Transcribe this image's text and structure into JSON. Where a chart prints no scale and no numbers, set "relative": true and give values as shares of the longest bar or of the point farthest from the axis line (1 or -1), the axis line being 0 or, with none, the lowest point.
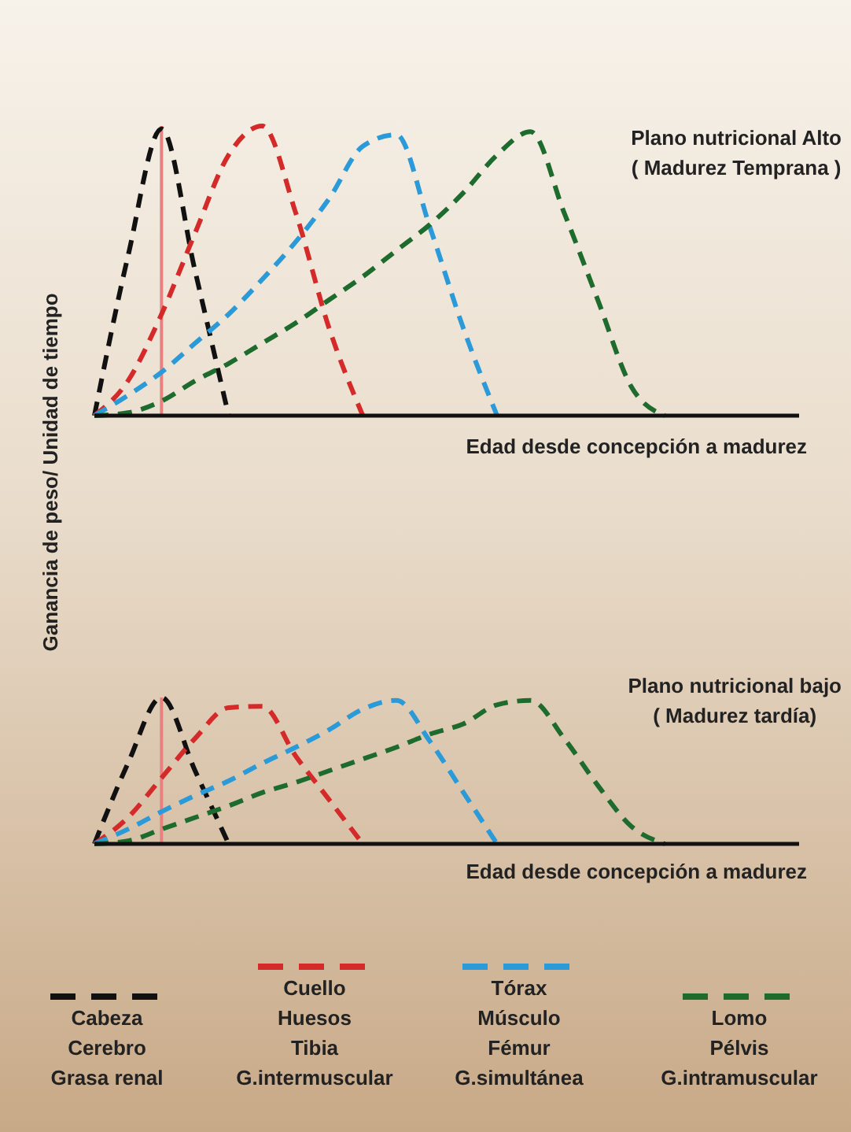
{
  "chart_data": [
    {
      "type": "line",
      "title": "Plano nutricional Alto",
      "subtitle": "( Madurez Temprana )",
      "xlabel": "Edad desde concepción a madurez",
      "ylabel": "Ganancia de peso/ Unidad de tiempo",
      "relative": true,
      "line_style": "dashed",
      "marker": "none",
      "grid": false,
      "categories": [
        null,
        null,
        null,
        null,
        null,
        null,
        null,
        null,
        null,
        null,
        null,
        null,
        null,
        null,
        null,
        null,
        null,
        null,
        null,
        null,
        null,
        null
      ],
      "series": [
        {
          "color": "#111111",
          "values": [
            0,
            0.55,
            0.99,
            0.5,
            0,
            null,
            null,
            null,
            null,
            null,
            null,
            null,
            null,
            null,
            null,
            null,
            null,
            null,
            null,
            null,
            null,
            null
          ]
        },
        {
          "color": "#d42a2a",
          "values": [
            0,
            0.12,
            0.35,
            0.63,
            0.9,
            1,
            0.7,
            0.3,
            0,
            null,
            null,
            null,
            null,
            null,
            null,
            null,
            null,
            null,
            null,
            null,
            null,
            null
          ]
        },
        {
          "color": "#2a9ad8",
          "values": [
            0,
            0.07,
            0.15,
            0.25,
            0.35,
            0.47,
            0.6,
            0.75,
            0.93,
            0.97,
            0.65,
            0.3,
            0,
            null,
            null,
            null,
            null,
            null,
            null,
            null,
            null,
            null
          ]
        },
        {
          "color": "#1e6b2e",
          "values": [
            0,
            0.01,
            0.05,
            0.12,
            0.18,
            0.25,
            0.32,
            0.4,
            0.48,
            0.57,
            0.66,
            0.77,
            0.9,
            0.98,
            0.7,
            0.4,
            0.1,
            0,
            null,
            null,
            null,
            null
          ]
        }
      ]
    },
    {
      "type": "line",
      "title": "Plano nutricional bajo",
      "subtitle": "( Madurez tardía)",
      "xlabel": "Edad desde concepción a madurez",
      "relative": true,
      "line_style": "dashed",
      "marker": "none",
      "grid": false,
      "legend": "bottom",
      "categories": [
        null,
        null,
        null,
        null,
        null,
        null,
        null,
        null,
        null,
        null,
        null,
        null,
        null,
        null,
        null,
        null,
        null,
        null,
        null,
        null,
        null,
        null
      ],
      "series": [
        {
          "name": "Cabeza\nCerebro\nGrasa renal",
          "color": "#111111",
          "values": [
            0,
            0.55,
            1,
            0.5,
            0,
            null,
            null,
            null,
            null,
            null,
            null,
            null,
            null,
            null,
            null,
            null,
            null,
            null,
            null,
            null,
            null,
            null
          ]
        },
        {
          "name": "Cuello\nHuesos\nTibia\nG.intermuscular",
          "color": "#d42a2a",
          "values": [
            0,
            0.18,
            0.45,
            0.72,
            0.93,
            0.94,
            0.6,
            0.3,
            0,
            null,
            null,
            null,
            null,
            null,
            null,
            null,
            null,
            null,
            null,
            null,
            null,
            null
          ]
        },
        {
          "name": "Tórax\nMúsculo\nFémur\nG.simultánea",
          "color": "#2a9ad8",
          "values": [
            0,
            0.1,
            0.22,
            0.33,
            0.43,
            0.55,
            0.66,
            0.78,
            0.92,
            0.98,
            0.7,
            0.35,
            0,
            null,
            null,
            null,
            null,
            null,
            null,
            null,
            null,
            null
          ]
        },
        {
          "name": "Lomo\nPélvis\nG.intramuscular",
          "color": "#1e6b2e",
          "values": [
            0,
            0.02,
            0.1,
            0.18,
            0.26,
            0.35,
            0.42,
            0.5,
            0.58,
            0.66,
            0.75,
            0.82,
            0.95,
            0.98,
            0.72,
            0.4,
            0.12,
            0,
            null,
            null,
            null,
            null
          ]
        }
      ]
    }
  ]
}
